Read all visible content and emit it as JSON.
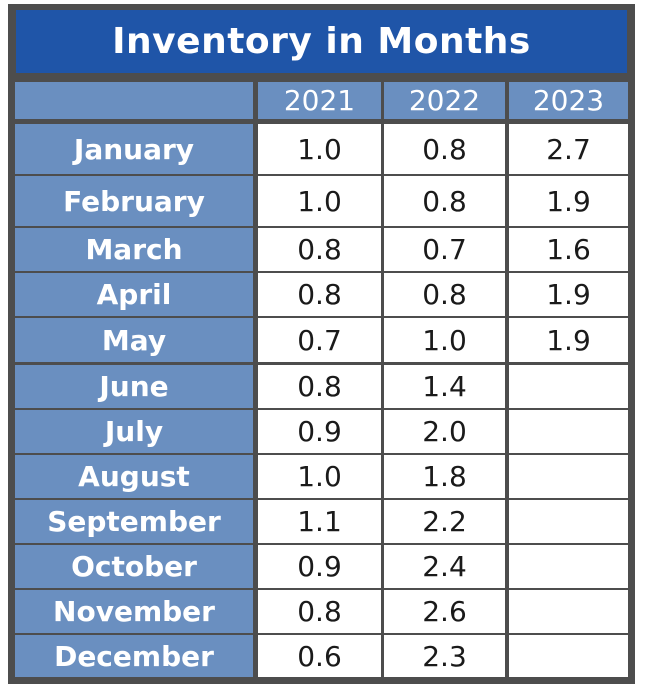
{
  "title": "Inventory in Months",
  "colors": {
    "title_bg": "#1f55a8",
    "header_bg": "#6a8fc0",
    "frame": "#4d4d4d",
    "value_bg": "#ffffff"
  },
  "chart_data": {
    "type": "table",
    "title": "Inventory in Months",
    "columns": [
      "2021",
      "2022",
      "2023"
    ],
    "rows": [
      {
        "month": "January",
        "values": [
          "1.0",
          "0.8",
          "2.7"
        ]
      },
      {
        "month": "February",
        "values": [
          "1.0",
          "0.8",
          "1.9"
        ]
      },
      {
        "month": "March",
        "values": [
          "0.8",
          "0.7",
          "1.6"
        ]
      },
      {
        "month": "April",
        "values": [
          "0.8",
          "0.8",
          "1.9"
        ]
      },
      {
        "month": "May",
        "values": [
          "0.7",
          "1.0",
          "1.9"
        ]
      },
      {
        "month": "June",
        "values": [
          "0.8",
          "1.4",
          ""
        ]
      },
      {
        "month": "July",
        "values": [
          "0.9",
          "2.0",
          ""
        ]
      },
      {
        "month": "August",
        "values": [
          "1.0",
          "1.8",
          ""
        ]
      },
      {
        "month": "September",
        "values": [
          "1.1",
          "2.2",
          ""
        ]
      },
      {
        "month": "October",
        "values": [
          "0.9",
          "2.4",
          ""
        ]
      },
      {
        "month": "November",
        "values": [
          "0.8",
          "2.6",
          ""
        ]
      },
      {
        "month": "December",
        "values": [
          "0.6",
          "2.3",
          ""
        ]
      }
    ]
  }
}
